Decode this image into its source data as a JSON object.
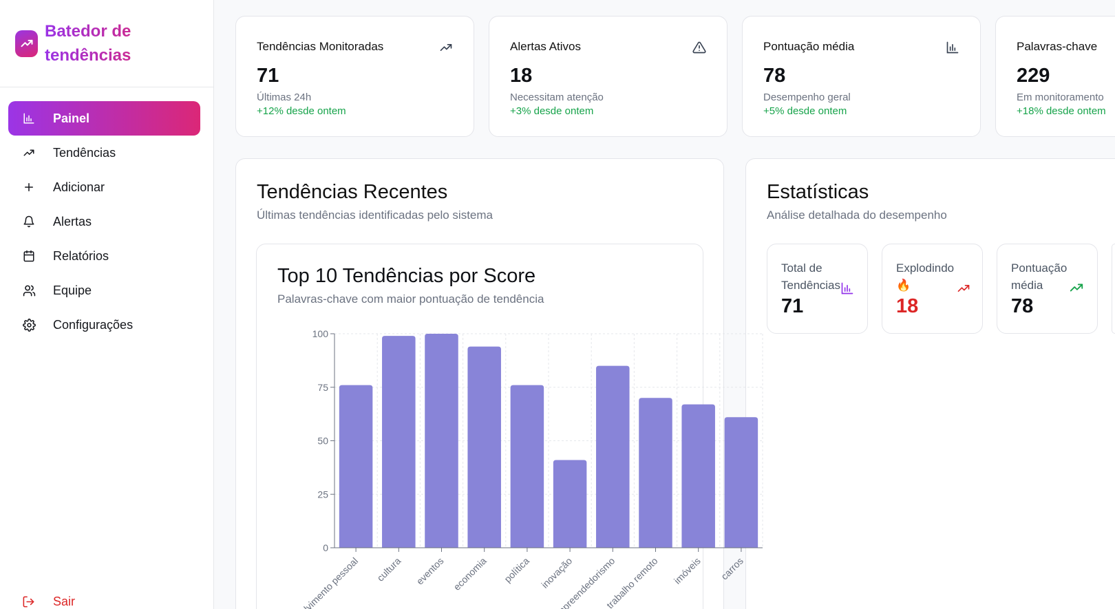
{
  "app": {
    "title": "Batedor de tendências"
  },
  "sidebar": {
    "items": [
      {
        "label": "Painel",
        "icon": "bar-chart-icon",
        "active": true
      },
      {
        "label": "Tendências",
        "icon": "trending-up-icon"
      },
      {
        "label": "Adicionar",
        "icon": "plus-icon"
      },
      {
        "label": "Alertas",
        "icon": "bell-icon"
      },
      {
        "label": "Relatórios",
        "icon": "calendar-icon"
      },
      {
        "label": "Equipe",
        "icon": "users-icon"
      },
      {
        "label": "Configurações",
        "icon": "gear-icon"
      }
    ],
    "logout": "Sair"
  },
  "stats": [
    {
      "title": "Tendências Monitoradas",
      "value": "71",
      "sub": "Últimas 24h",
      "delta": "+12% desde ontem",
      "icon": "trending-up-icon"
    },
    {
      "title": "Alertas Ativos",
      "value": "18",
      "sub": "Necessitam atenção",
      "delta": "+3% desde ontem",
      "icon": "alert-triangle-icon"
    },
    {
      "title": "Pontuação média",
      "value": "78",
      "sub": "Desempenho geral",
      "delta": "+5% desde ontem",
      "icon": "bar-chart-icon"
    },
    {
      "title": "Palavras-chave",
      "value": "229",
      "sub": "Em monitoramento",
      "delta": "+18% desde ontem",
      "icon": "tag-icon"
    }
  ],
  "recent": {
    "title": "Tendências Recentes",
    "subtitle": "Últimas tendências identificadas pelo sistema",
    "chart_title": "Top 10 Tendências por Score",
    "chart_subtitle": "Palavras-chave com maior pontuação de tendência"
  },
  "chart_data": {
    "type": "bar",
    "categories": [
      "desenvolvimento pessoal",
      "cultura",
      "eventos",
      "economia",
      "política",
      "inovação",
      "empreendedorismo",
      "trabalho remoto",
      "imóveis",
      "carros"
    ],
    "values": [
      76,
      99,
      100,
      94,
      76,
      41,
      85,
      70,
      67,
      61
    ],
    "ylim": [
      0,
      100
    ],
    "yticks": [
      0,
      25,
      50,
      75,
      100
    ],
    "grid": true,
    "bar_color": "#8884d8",
    "xlabel": "",
    "ylabel": ""
  },
  "statistics": {
    "title": "Estatísticas",
    "subtitle": "Análise detalhada do desempenho",
    "cards": [
      {
        "label": "Total de Tendências",
        "value": "71",
        "icon": "bar-chart-icon",
        "value_color": "#111111"
      },
      {
        "label": "Explodindo 🔥",
        "value": "18",
        "icon": "trending-up-icon",
        "value_color": "#dc2626"
      },
      {
        "label": "Pontuação média",
        "value": "78",
        "icon": "trending-up-icon",
        "value_color": "#111111"
      }
    ]
  },
  "colors": {
    "accent_start": "#9b35e6",
    "accent_end": "#db2777",
    "positive": "#16a34a",
    "danger": "#dc2626"
  }
}
